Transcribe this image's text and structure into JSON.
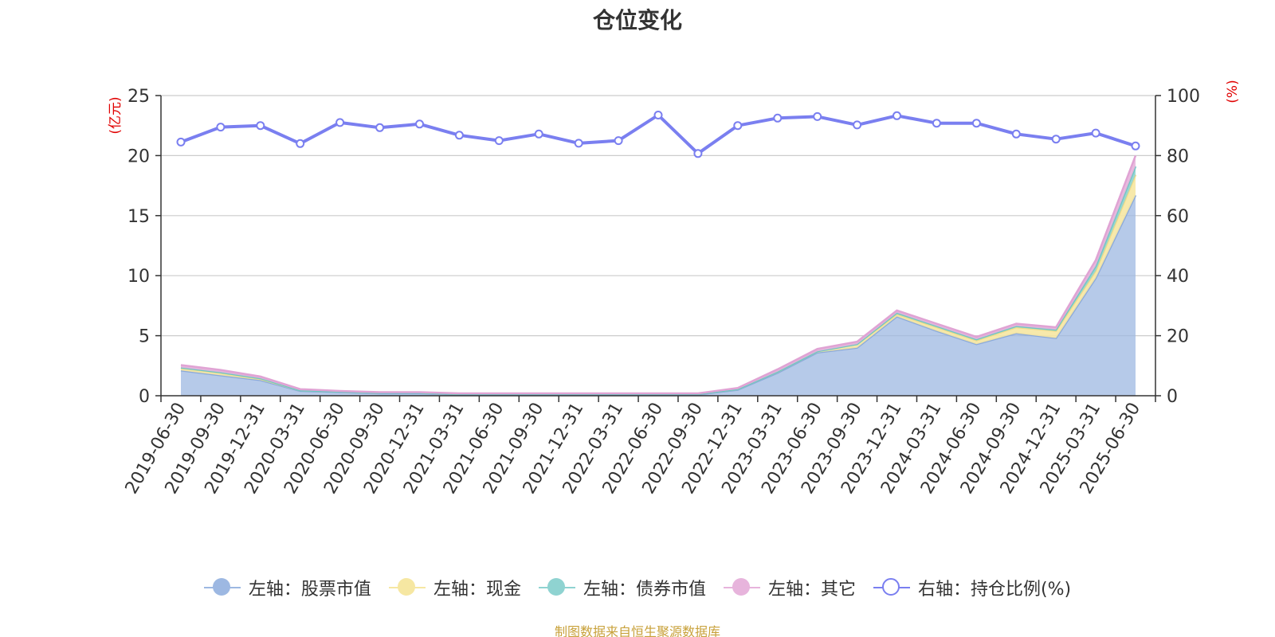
{
  "title": "仓位变化",
  "source": "制图数据来自恒生聚源数据库",
  "left_axis_label": "(亿元)",
  "right_axis_label": "(%)",
  "colors": {
    "stock": "#9db8e2",
    "cash": "#f6e7a2",
    "bond": "#8fd3d1",
    "other": "#e7b4dc",
    "ratio": "#7a7ff0",
    "axis_label": "#e00000",
    "grid": "#cccccc",
    "source": "#c8a13a"
  },
  "legend": [
    {
      "label": "左轴：股票市值",
      "icon": "filled-circle",
      "color": "#9db8e2"
    },
    {
      "label": "左轴：现金",
      "icon": "filled-circle",
      "color": "#f6e7a2"
    },
    {
      "label": "左轴：债券市值",
      "icon": "filled-circle",
      "color": "#8fd3d1"
    },
    {
      "label": "左轴：其它",
      "icon": "filled-circle",
      "color": "#e7b4dc"
    },
    {
      "label": "右轴：持仓比例(%)",
      "icon": "hollow-circle",
      "color": "#7a7ff0"
    }
  ],
  "chart_data": {
    "type": "area",
    "title": "仓位变化",
    "categories": [
      "2019-06-30",
      "2019-09-30",
      "2019-12-31",
      "2020-03-31",
      "2020-06-30",
      "2020-09-30",
      "2020-12-31",
      "2021-03-31",
      "2021-06-30",
      "2021-09-30",
      "2021-12-31",
      "2022-03-31",
      "2022-06-30",
      "2022-09-30",
      "2022-12-31",
      "2023-03-31",
      "2023-06-30",
      "2023-09-30",
      "2023-12-31",
      "2024-03-31",
      "2024-06-30",
      "2024-09-30",
      "2024-12-31",
      "2025-03-31",
      "2025-06-30"
    ],
    "y_left": {
      "label": "(亿元)",
      "ylim": [
        0,
        25
      ],
      "ticks": [
        0,
        5,
        10,
        15,
        20,
        25
      ]
    },
    "y_right": {
      "label": "(%)",
      "ylim": [
        0,
        100
      ],
      "ticks": [
        0,
        20,
        40,
        60,
        80,
        100
      ]
    },
    "grid": true,
    "legend_position": "bottom",
    "stacked_series": [
      {
        "name": "左轴：股票市值",
        "values": [
          2.1,
          1.7,
          1.3,
          0.4,
          0.3,
          0.2,
          0.2,
          0.1,
          0.1,
          0.1,
          0.1,
          0.1,
          0.1,
          0.1,
          0.5,
          1.9,
          3.6,
          4.0,
          6.6,
          5.4,
          4.3,
          5.2,
          4.8,
          9.8,
          16.7
        ]
      },
      {
        "name": "左轴：现金",
        "values": [
          0.2,
          0.2,
          0.1,
          0.05,
          0.05,
          0.05,
          0.05,
          0.05,
          0.05,
          0.05,
          0.05,
          0.05,
          0.05,
          0.05,
          0.05,
          0.1,
          0.1,
          0.3,
          0.2,
          0.3,
          0.3,
          0.5,
          0.6,
          0.6,
          1.7
        ]
      },
      {
        "name": "左轴：债券市值",
        "values": [
          0.05,
          0.05,
          0.05,
          0,
          0,
          0,
          0,
          0,
          0,
          0,
          0,
          0,
          0,
          0,
          0,
          0,
          0,
          0,
          0.1,
          0.1,
          0.1,
          0.1,
          0.1,
          0.4,
          0.7
        ]
      },
      {
        "name": "左轴：其它",
        "values": [
          0.2,
          0.2,
          0.15,
          0.1,
          0.05,
          0.05,
          0.05,
          0.05,
          0.05,
          0.05,
          0.05,
          0.05,
          0.05,
          0.05,
          0.1,
          0.2,
          0.2,
          0.2,
          0.2,
          0.2,
          0.2,
          0.2,
          0.2,
          0.5,
          0.9
        ]
      }
    ],
    "line_series": {
      "name": "右轴：持仓比例(%)",
      "axis": "right",
      "values": [
        84.5,
        89.5,
        90.0,
        84.0,
        91.0,
        89.3,
        90.5,
        86.8,
        85.0,
        87.2,
        84.1,
        85.0,
        93.5,
        80.7,
        90.0,
        92.5,
        93.0,
        90.2,
        93.3,
        90.8,
        90.8,
        87.2,
        85.5,
        87.5,
        83.2
      ]
    }
  }
}
